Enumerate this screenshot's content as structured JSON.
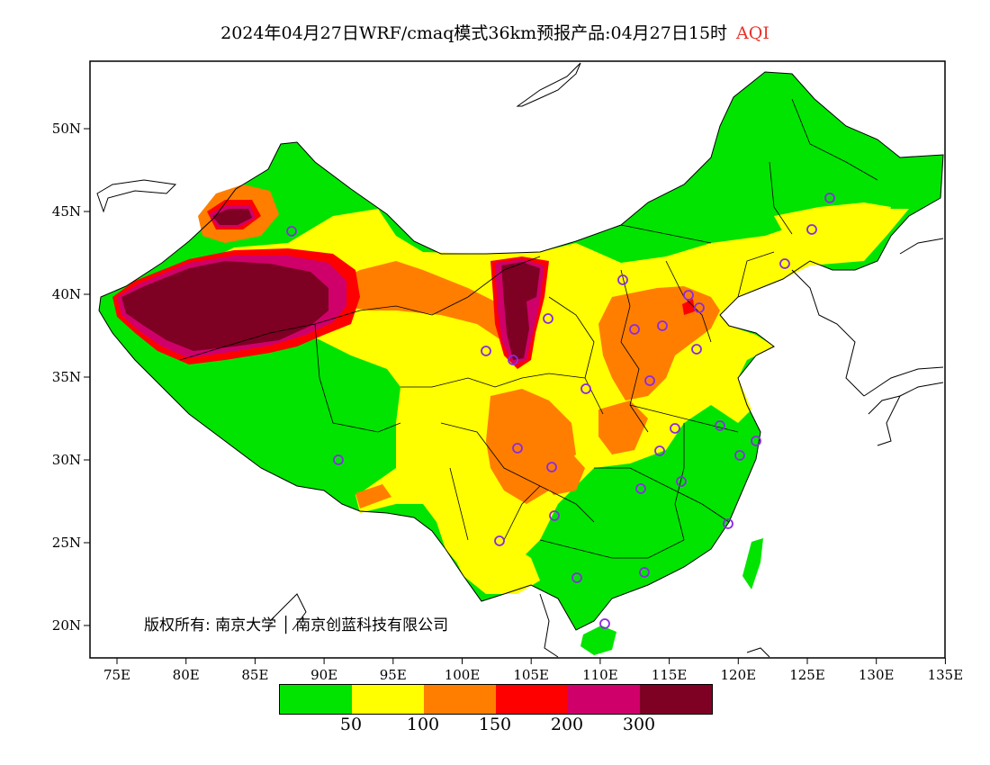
{
  "title": {
    "main": "2024年04月27日WRF/cmaq模式36km预报产品:04月27日15时",
    "variable": "AQI",
    "variable_color": "#e8322a"
  },
  "axes": {
    "longitude_ticks": [
      "75E",
      "80E",
      "85E",
      "90E",
      "95E",
      "100E",
      "105E",
      "110E",
      "115E",
      "120E",
      "125E",
      "130E",
      "135E"
    ],
    "latitude_ticks": [
      "50N",
      "45N",
      "40N",
      "35N",
      "30N",
      "25N",
      "20N"
    ]
  },
  "legend": {
    "colors": [
      "#00e400",
      "#ffff00",
      "#ff7e00",
      "#ff0000",
      "#d0006a",
      "#7e0023"
    ],
    "tick_labels": [
      "50",
      "100",
      "150",
      "200",
      "300"
    ]
  },
  "copyright": "版权所有: 南京大学 │ 南京创蓝科技有限公司",
  "map_colors": {
    "background": "#ffffff",
    "good": "#00e400",
    "moderate": "#ffff00",
    "unhealthy_sensitive": "#ff7e00",
    "unhealthy": "#ff0000",
    "very_unhealthy": "#d0006a",
    "hazardous": "#7e0023",
    "station_marker": "#8a2be2",
    "boundary": "#000000"
  }
}
